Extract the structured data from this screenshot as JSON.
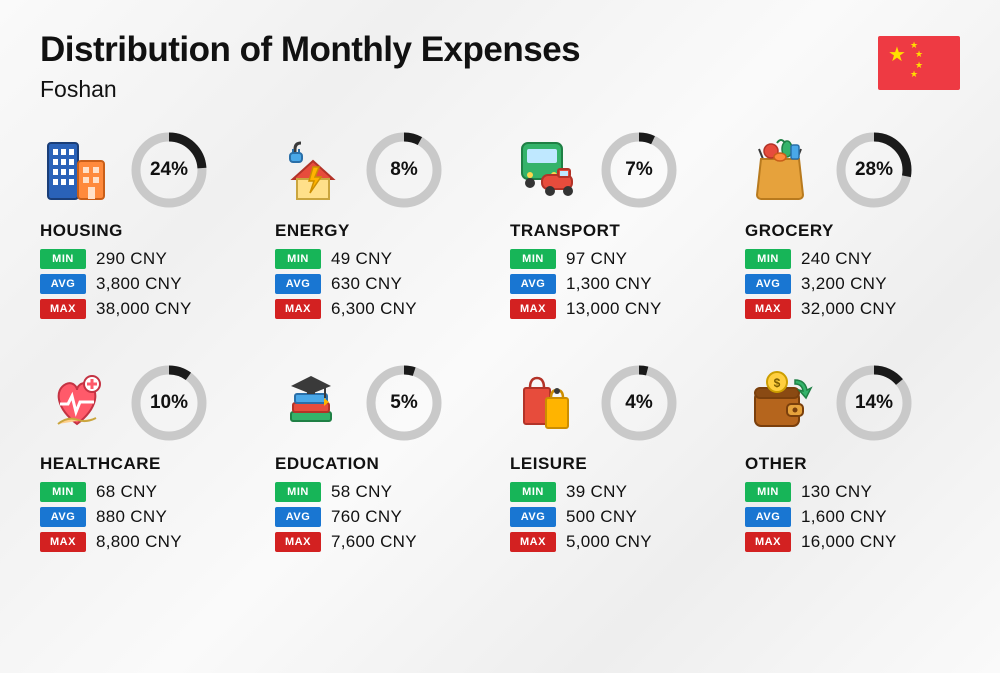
{
  "title": "Distribution of Monthly Expenses",
  "city": "Foshan",
  "currency": "CNY",
  "flag_bg": "#ee3a43",
  "flag_star": "#ffde00",
  "donut": {
    "radius": 33,
    "stroke_width": 9,
    "track_color": "#c9c9c9",
    "arc_color": "#1a1a1a",
    "label_fontsize": 19
  },
  "badges": {
    "min": {
      "label": "MIN",
      "bg": "#17b558"
    },
    "avg": {
      "label": "AVG",
      "bg": "#1976d2"
    },
    "max": {
      "label": "MAX",
      "bg": "#d32121"
    }
  },
  "categories": [
    {
      "name": "HOUSING",
      "icon": "buildings",
      "percent": 24,
      "min": "290 CNY",
      "avg": "3,800 CNY",
      "max": "38,000 CNY"
    },
    {
      "name": "ENERGY",
      "icon": "energy",
      "percent": 8,
      "min": "49 CNY",
      "avg": "630 CNY",
      "max": "6,300 CNY"
    },
    {
      "name": "TRANSPORT",
      "icon": "transport",
      "percent": 7,
      "min": "97 CNY",
      "avg": "1,300 CNY",
      "max": "13,000 CNY"
    },
    {
      "name": "GROCERY",
      "icon": "grocery",
      "percent": 28,
      "min": "240 CNY",
      "avg": "3,200 CNY",
      "max": "32,000 CNY"
    },
    {
      "name": "HEALTHCARE",
      "icon": "health",
      "percent": 10,
      "min": "68 CNY",
      "avg": "880 CNY",
      "max": "8,800 CNY"
    },
    {
      "name": "EDUCATION",
      "icon": "education",
      "percent": 5,
      "min": "58 CNY",
      "avg": "760 CNY",
      "max": "7,600 CNY"
    },
    {
      "name": "LEISURE",
      "icon": "leisure",
      "percent": 4,
      "min": "39 CNY",
      "avg": "500 CNY",
      "max": "5,000 CNY"
    },
    {
      "name": "OTHER",
      "icon": "wallet",
      "percent": 14,
      "min": "130 CNY",
      "avg": "1,600 CNY",
      "max": "16,000 CNY"
    }
  ]
}
